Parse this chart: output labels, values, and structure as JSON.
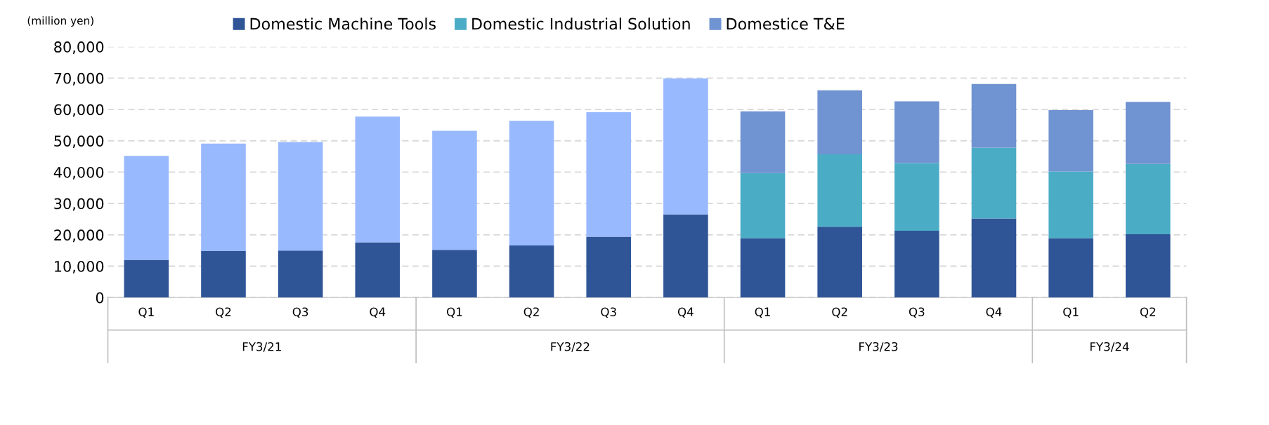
{
  "chart_data": {
    "type": "bar",
    "stacked": true,
    "ylabel": "(million yen)",
    "categories": [
      "Q1",
      "Q2",
      "Q3",
      "Q4",
      "Q1",
      "Q2",
      "Q3",
      "Q4",
      "Q1",
      "Q2",
      "Q3",
      "Q4",
      "Q1",
      "Q2"
    ],
    "series": [
      {
        "name": "Domestic Machine Tools",
        "color": "#2f5597",
        "values": [
          12000,
          14800,
          15000,
          17600,
          15200,
          16600,
          19400,
          26500,
          18900,
          22600,
          21300,
          25200,
          18900,
          20200
        ]
      },
      {
        "color": "#99b9ff",
        "values": [
          33200,
          34300,
          34600,
          40100,
          38000,
          39800,
          39700,
          43400,
          null,
          null,
          null,
          null,
          null,
          null
        ]
      },
      {
        "name": "Domestic Industrial Solution",
        "color": "#4bacc6",
        "values": [
          null,
          null,
          null,
          null,
          null,
          null,
          null,
          null,
          20800,
          23100,
          21600,
          22600,
          21300,
          22400
        ]
      },
      {
        "name": "Domestice T&E",
        "color": "#7093d1",
        "values": [
          null,
          null,
          null,
          null,
          null,
          null,
          null,
          null,
          19700,
          20400,
          19700,
          20300,
          19600,
          19800
        ]
      }
    ],
    "annotations": [
      "FY3/21",
      "FY3/22",
      "FY3/23",
      "FY3/24"
    ],
    "ylim": [
      0,
      80000
    ],
    "yticks": [
      0,
      {
        "value": 10000,
        "label": "10,000"
      },
      {
        "value": 20000,
        "label": "20,000"
      },
      {
        "value": 30000,
        "label": "30,000"
      },
      {
        "value": 40000,
        "label": "40,000"
      },
      {
        "value": 50000,
        "label": "50,000"
      },
      {
        "value": 60000,
        "label": "60,000"
      },
      {
        "value": 70000,
        "label": "70,000"
      },
      {
        "value": 80000,
        "label": "80,000"
      }
    ],
    "grid": "y",
    "legend": "top"
  }
}
